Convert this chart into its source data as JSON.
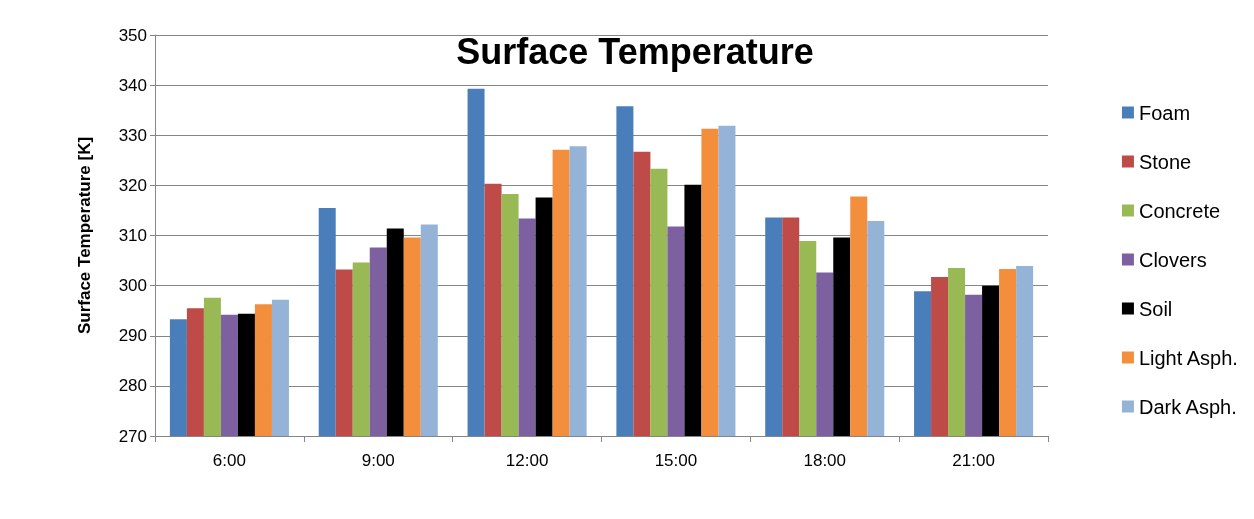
{
  "chart_data": {
    "type": "bar",
    "title": "Surface Temperature",
    "ylabel": "Surface Temperature [K]",
    "categories": [
      "6:00",
      "9:00",
      "12:00",
      "15:00",
      "18:00",
      "21:00"
    ],
    "series": [
      {
        "name": "Foam",
        "color": "#4a7ebb",
        "values": [
          293.3,
          315.5,
          339.3,
          335.8,
          313.6,
          298.9
        ]
      },
      {
        "name": "Stone",
        "color": "#be4b48",
        "values": [
          295.5,
          303.2,
          320.3,
          326.7,
          313.6,
          301.7
        ]
      },
      {
        "name": "Concrete",
        "color": "#98b954",
        "values": [
          297.6,
          304.6,
          318.3,
          323.3,
          308.9,
          303.5
        ]
      },
      {
        "name": "Clovers",
        "color": "#7d60a0",
        "values": [
          294.2,
          307.6,
          313.4,
          311.8,
          302.6,
          298.2
        ]
      },
      {
        "name": "Soil",
        "color": "#000000",
        "values": [
          294.4,
          311.4,
          317.6,
          320.1,
          309.6,
          300.0
        ]
      },
      {
        "name": "Light Asph.",
        "color": "#f38e3c",
        "values": [
          296.3,
          309.6,
          327.1,
          331.3,
          317.8,
          303.3
        ]
      },
      {
        "name": "Dark Asph.",
        "color": "#95b3d7",
        "values": [
          297.2,
          312.2,
          327.8,
          331.9,
          312.9,
          303.9
        ]
      }
    ],
    "ylim": [
      270,
      350
    ],
    "yticks": [
      270,
      280,
      290,
      300,
      310,
      320,
      330,
      340,
      350
    ],
    "grid": "y",
    "legend": "right"
  }
}
